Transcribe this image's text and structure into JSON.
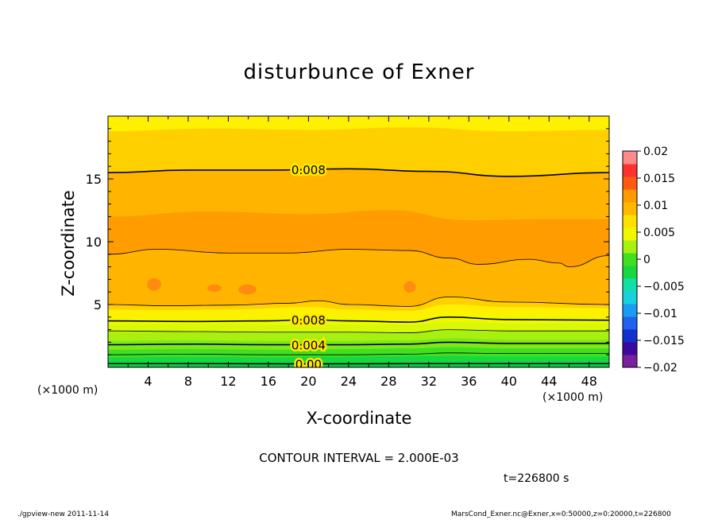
{
  "chart_data": {
    "type": "contour",
    "title": "disturbunce of Exner",
    "xlabel": "X-coordinate",
    "ylabel": "Z-coordinate",
    "x_unit": "(×1000 m)",
    "xlim": [
      0,
      50
    ],
    "ylim": [
      0,
      20
    ],
    "x_ticks": [
      4,
      8,
      12,
      16,
      20,
      24,
      28,
      32,
      36,
      40,
      44,
      48
    ],
    "y_ticks": [
      5,
      10,
      15
    ],
    "contour_interval_label": "CONTOUR INTERVAL = 2.000E-03",
    "time_label": "t=226800 s",
    "color_levels": [
      -0.02,
      -0.0175,
      -0.015,
      -0.0125,
      -0.01,
      -0.0075,
      -0.005,
      -0.0025,
      0,
      0.0025,
      0.005,
      0.0075,
      0.01,
      0.0125,
      0.015,
      0.0175,
      0.02
    ],
    "colorbar_tick_labels": [
      "0.02",
      "0.015",
      "0.01",
      "0.005",
      "0",
      "−0.005",
      "−0.01",
      "−0.015",
      "−0.02"
    ],
    "colorbar_ticks": [
      0.02,
      0.015,
      0.01,
      0.005,
      0,
      -0.005,
      -0.01,
      -0.015,
      -0.02
    ],
    "colorbar_colors": [
      "#7a1f9e",
      "#3a0aa0",
      "#1030d0",
      "#1e62ee",
      "#1a9cf2",
      "#18d0e0",
      "#10e0a8",
      "#18d840",
      "#40e020",
      "#a8f010",
      "#f0f800",
      "#ffe000",
      "#ffb800",
      "#ff9a00",
      "#ff5a10",
      "#ff3030",
      "#ff8a8a"
    ],
    "bands": [
      {
        "value": -0.0025,
        "fill": "#18d840",
        "boundary": [
          [
            0,
            0.25
          ],
          [
            10,
            0.3
          ],
          [
            20,
            0.25
          ],
          [
            30,
            0.3
          ],
          [
            40,
            0.25
          ],
          [
            50,
            0.3
          ]
        ]
      },
      {
        "value": 0,
        "fill": "#40e020",
        "boundary": [
          [
            0,
            0.8
          ],
          [
            8,
            0.85
          ],
          [
            16,
            0.8
          ],
          [
            24,
            0.85
          ],
          [
            32,
            0.9
          ],
          [
            40,
            0.85
          ],
          [
            50,
            0.85
          ]
        ]
      },
      {
        "value": 0.0025,
        "fill": "#7ce818",
        "boundary": [
          [
            0,
            1.4
          ],
          [
            8,
            1.45
          ],
          [
            16,
            1.4
          ],
          [
            24,
            1.45
          ],
          [
            30,
            1.5
          ],
          [
            34,
            1.6
          ],
          [
            40,
            1.5
          ],
          [
            50,
            1.5
          ]
        ]
      },
      {
        "value": 0.004,
        "fill": "#a8f010",
        "boundary": [
          [
            0,
            2.1
          ],
          [
            8,
            2.15
          ],
          [
            16,
            2.1
          ],
          [
            24,
            2.1
          ],
          [
            30,
            2.15
          ],
          [
            34,
            2.3
          ],
          [
            40,
            2.2
          ],
          [
            50,
            2.2
          ]
        ]
      },
      {
        "value": 0.005,
        "fill": "#d8f808",
        "boundary": [
          [
            0,
            2.8
          ],
          [
            8,
            2.85
          ],
          [
            16,
            2.8
          ],
          [
            24,
            2.8
          ],
          [
            30,
            2.8
          ],
          [
            34,
            3.0
          ],
          [
            40,
            2.9
          ],
          [
            50,
            2.9
          ]
        ]
      },
      {
        "value": 0.006,
        "fill": "#f0f800",
        "boundary": [
          [
            0,
            3.4
          ],
          [
            8,
            3.45
          ],
          [
            16,
            3.4
          ],
          [
            24,
            3.4
          ],
          [
            30,
            3.4
          ],
          [
            34,
            3.6
          ],
          [
            40,
            3.5
          ],
          [
            50,
            3.5
          ]
        ]
      },
      {
        "value": 0.0075,
        "fill": "#fff000",
        "boundary": [
          [
            0,
            4.0
          ],
          [
            8,
            3.95
          ],
          [
            16,
            4.0
          ],
          [
            20,
            4.2
          ],
          [
            24,
            4.05
          ],
          [
            30,
            3.8
          ],
          [
            34,
            4.3
          ],
          [
            40,
            4.2
          ],
          [
            50,
            4.0
          ]
        ]
      },
      {
        "value": 0.009,
        "fill": "#ffd000",
        "boundary": [
          [
            0,
            4.6
          ],
          [
            6,
            4.55
          ],
          [
            12,
            4.6
          ],
          [
            20,
            4.8
          ],
          [
            24,
            4.6
          ],
          [
            30,
            4.5
          ],
          [
            34,
            5.0
          ],
          [
            40,
            4.8
          ],
          [
            50,
            4.7
          ]
        ]
      },
      {
        "value": 0.01,
        "fill": "#ffb400",
        "boundary": [
          [
            0,
            5.0
          ],
          [
            6,
            4.9
          ],
          [
            12,
            4.95
          ],
          [
            18,
            5.1
          ],
          [
            21,
            5.3
          ],
          [
            24,
            5.0
          ],
          [
            30,
            4.85
          ],
          [
            34,
            5.6
          ],
          [
            40,
            5.2
          ],
          [
            50,
            5.0
          ]
        ]
      },
      {
        "value": 0.0095,
        "fill": "#ff9c00",
        "boundary": [
          [
            0,
            9.0
          ],
          [
            5,
            9.4
          ],
          [
            12,
            9.1
          ],
          [
            18,
            9.1
          ],
          [
            24,
            9.4
          ],
          [
            30,
            9.3
          ],
          [
            34,
            8.7
          ],
          [
            37,
            8.2
          ],
          [
            42,
            8.6
          ],
          [
            45,
            8.3
          ],
          [
            46,
            8.0
          ],
          [
            50,
            8.9
          ]
        ]
      },
      {
        "value": 0.0085,
        "fill": "#ffb400",
        "boundary": [
          [
            0,
            12.0
          ],
          [
            10,
            12.4
          ],
          [
            20,
            12.2
          ],
          [
            28,
            12.5
          ],
          [
            36,
            11.7
          ],
          [
            44,
            11.8
          ],
          [
            50,
            11.8
          ]
        ]
      },
      {
        "value": 0.0075,
        "fill": "#ffd000",
        "boundary": [
          [
            0,
            15.5
          ],
          [
            8,
            15.7
          ],
          [
            16,
            15.7
          ],
          [
            24,
            15.8
          ],
          [
            32,
            15.6
          ],
          [
            40,
            15.2
          ],
          [
            50,
            15.5
          ]
        ]
      },
      {
        "value": 0.0065,
        "fill": "#fff000",
        "boundary": [
          [
            0,
            18.8
          ],
          [
            10,
            19.0
          ],
          [
            20,
            18.9
          ],
          [
            30,
            19.1
          ],
          [
            40,
            18.8
          ],
          [
            50,
            18.9
          ]
        ]
      },
      {
        "value": 0.006,
        "fill": "#eefa00",
        "boundary": [
          [
            0,
            20
          ],
          [
            50,
            20
          ]
        ]
      }
    ],
    "blobs": [
      {
        "x": 4.6,
        "z": 6.6,
        "rx": 0.7,
        "rz": 0.5
      },
      {
        "x": 10.6,
        "z": 6.3,
        "rx": 0.7,
        "rz": 0.3
      },
      {
        "x": 13.9,
        "z": 6.2,
        "rx": 0.9,
        "rz": 0.4
      },
      {
        "x": 30.1,
        "z": 6.4,
        "rx": 0.6,
        "rz": 0.45
      }
    ],
    "contour_lines": [
      {
        "level": 0.008,
        "label": "0.008",
        "label_x": 20,
        "points": [
          [
            0,
            15.5
          ],
          [
            8,
            15.7
          ],
          [
            16,
            15.7
          ],
          [
            24,
            15.8
          ],
          [
            32,
            15.6
          ],
          [
            40,
            15.2
          ],
          [
            50,
            15.5
          ]
        ]
      },
      {
        "level": 0.01,
        "label": "",
        "points": [
          [
            0,
            9.0
          ],
          [
            5,
            9.4
          ],
          [
            12,
            9.1
          ],
          [
            18,
            9.1
          ],
          [
            24,
            9.4
          ],
          [
            30,
            9.3
          ],
          [
            34,
            8.7
          ],
          [
            37,
            8.2
          ],
          [
            42,
            8.6
          ],
          [
            45,
            8.3
          ],
          [
            46,
            8.0
          ],
          [
            50,
            8.9
          ]
        ]
      },
      {
        "level": 0.01,
        "label": "",
        "points": [
          [
            0,
            5.0
          ],
          [
            6,
            4.9
          ],
          [
            12,
            4.95
          ],
          [
            18,
            5.1
          ],
          [
            21,
            5.3
          ],
          [
            24,
            5.0
          ],
          [
            30,
            4.85
          ],
          [
            34,
            5.6
          ],
          [
            40,
            5.2
          ],
          [
            50,
            5.0
          ]
        ]
      },
      {
        "level": 0.008,
        "label": "0.008",
        "label_x": 20,
        "points": [
          [
            0,
            3.7
          ],
          [
            8,
            3.65
          ],
          [
            16,
            3.7
          ],
          [
            20,
            3.8
          ],
          [
            24,
            3.7
          ],
          [
            30,
            3.6
          ],
          [
            34,
            4.0
          ],
          [
            40,
            3.8
          ],
          [
            50,
            3.75
          ]
        ]
      },
      {
        "level": 0.006,
        "label": "",
        "points": [
          [
            0,
            2.9
          ],
          [
            8,
            2.85
          ],
          [
            16,
            2.8
          ],
          [
            24,
            2.8
          ],
          [
            30,
            2.75
          ],
          [
            34,
            3.0
          ],
          [
            40,
            2.9
          ],
          [
            50,
            2.9
          ]
        ]
      },
      {
        "level": 0.004,
        "label": "0.004",
        "label_x": 20,
        "points": [
          [
            0,
            1.8
          ],
          [
            8,
            1.85
          ],
          [
            16,
            1.8
          ],
          [
            24,
            1.8
          ],
          [
            30,
            1.85
          ],
          [
            34,
            2.0
          ],
          [
            40,
            1.9
          ],
          [
            50,
            1.9
          ]
        ]
      },
      {
        "level": 0.002,
        "label": "",
        "points": [
          [
            0,
            1.0
          ],
          [
            8,
            1.05
          ],
          [
            16,
            1.0
          ],
          [
            24,
            1.0
          ],
          [
            30,
            1.05
          ],
          [
            34,
            1.15
          ],
          [
            40,
            1.1
          ],
          [
            50,
            1.1
          ]
        ]
      },
      {
        "level": 0.0,
        "label": "0.00",
        "label_x": 20,
        "points": [
          [
            0,
            0.3
          ],
          [
            10,
            0.3
          ],
          [
            20,
            0.28
          ],
          [
            30,
            0.3
          ],
          [
            40,
            0.3
          ],
          [
            50,
            0.3
          ]
        ]
      }
    ]
  },
  "footer": {
    "left": "./gpview-new   2011-11-14",
    "right": "MarsCond_Exner.nc@Exner,x=0:50000,z=0:20000,t=226800"
  }
}
